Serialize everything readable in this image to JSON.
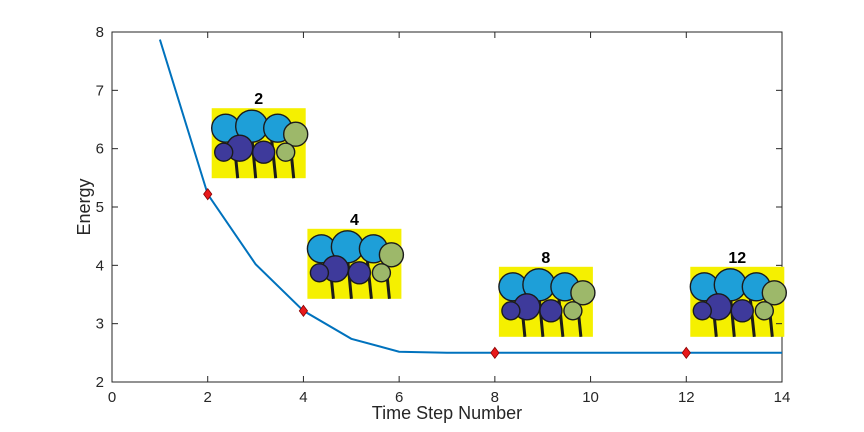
{
  "chart_data": {
    "type": "line",
    "title": "",
    "xlabel": "Time Step Number",
    "ylabel": "Energy",
    "xlim": [
      0,
      14
    ],
    "ylim": [
      2,
      8
    ],
    "xticks": [
      "0",
      "2",
      "4",
      "6",
      "8",
      "10",
      "12",
      "14"
    ],
    "yticks": [
      "2",
      "3",
      "4",
      "5",
      "6",
      "7",
      "8"
    ],
    "grid": false,
    "legend": "none",
    "series": [
      {
        "color": "#0072BD",
        "x": [
          1,
          2,
          3,
          4,
          5,
          6,
          7,
          8,
          9,
          10,
          11,
          12,
          13,
          14
        ],
        "y": [
          7.87,
          5.22,
          4.02,
          3.22,
          2.74,
          2.52,
          2.5,
          2.5,
          2.5,
          2.5,
          2.5,
          2.5,
          2.5,
          2.5
        ]
      }
    ],
    "markers": {
      "color": "#E8191B",
      "shape": "diamond",
      "points": [
        {
          "x": 2,
          "y": 5.22
        },
        {
          "x": 4,
          "y": 3.22
        },
        {
          "x": 8,
          "y": 2.5
        },
        {
          "x": 12,
          "y": 2.5
        }
      ]
    },
    "annotations": [
      {
        "label": "2"
      },
      {
        "label": "4"
      },
      {
        "label": "8"
      },
      {
        "label": "12"
      }
    ]
  }
}
